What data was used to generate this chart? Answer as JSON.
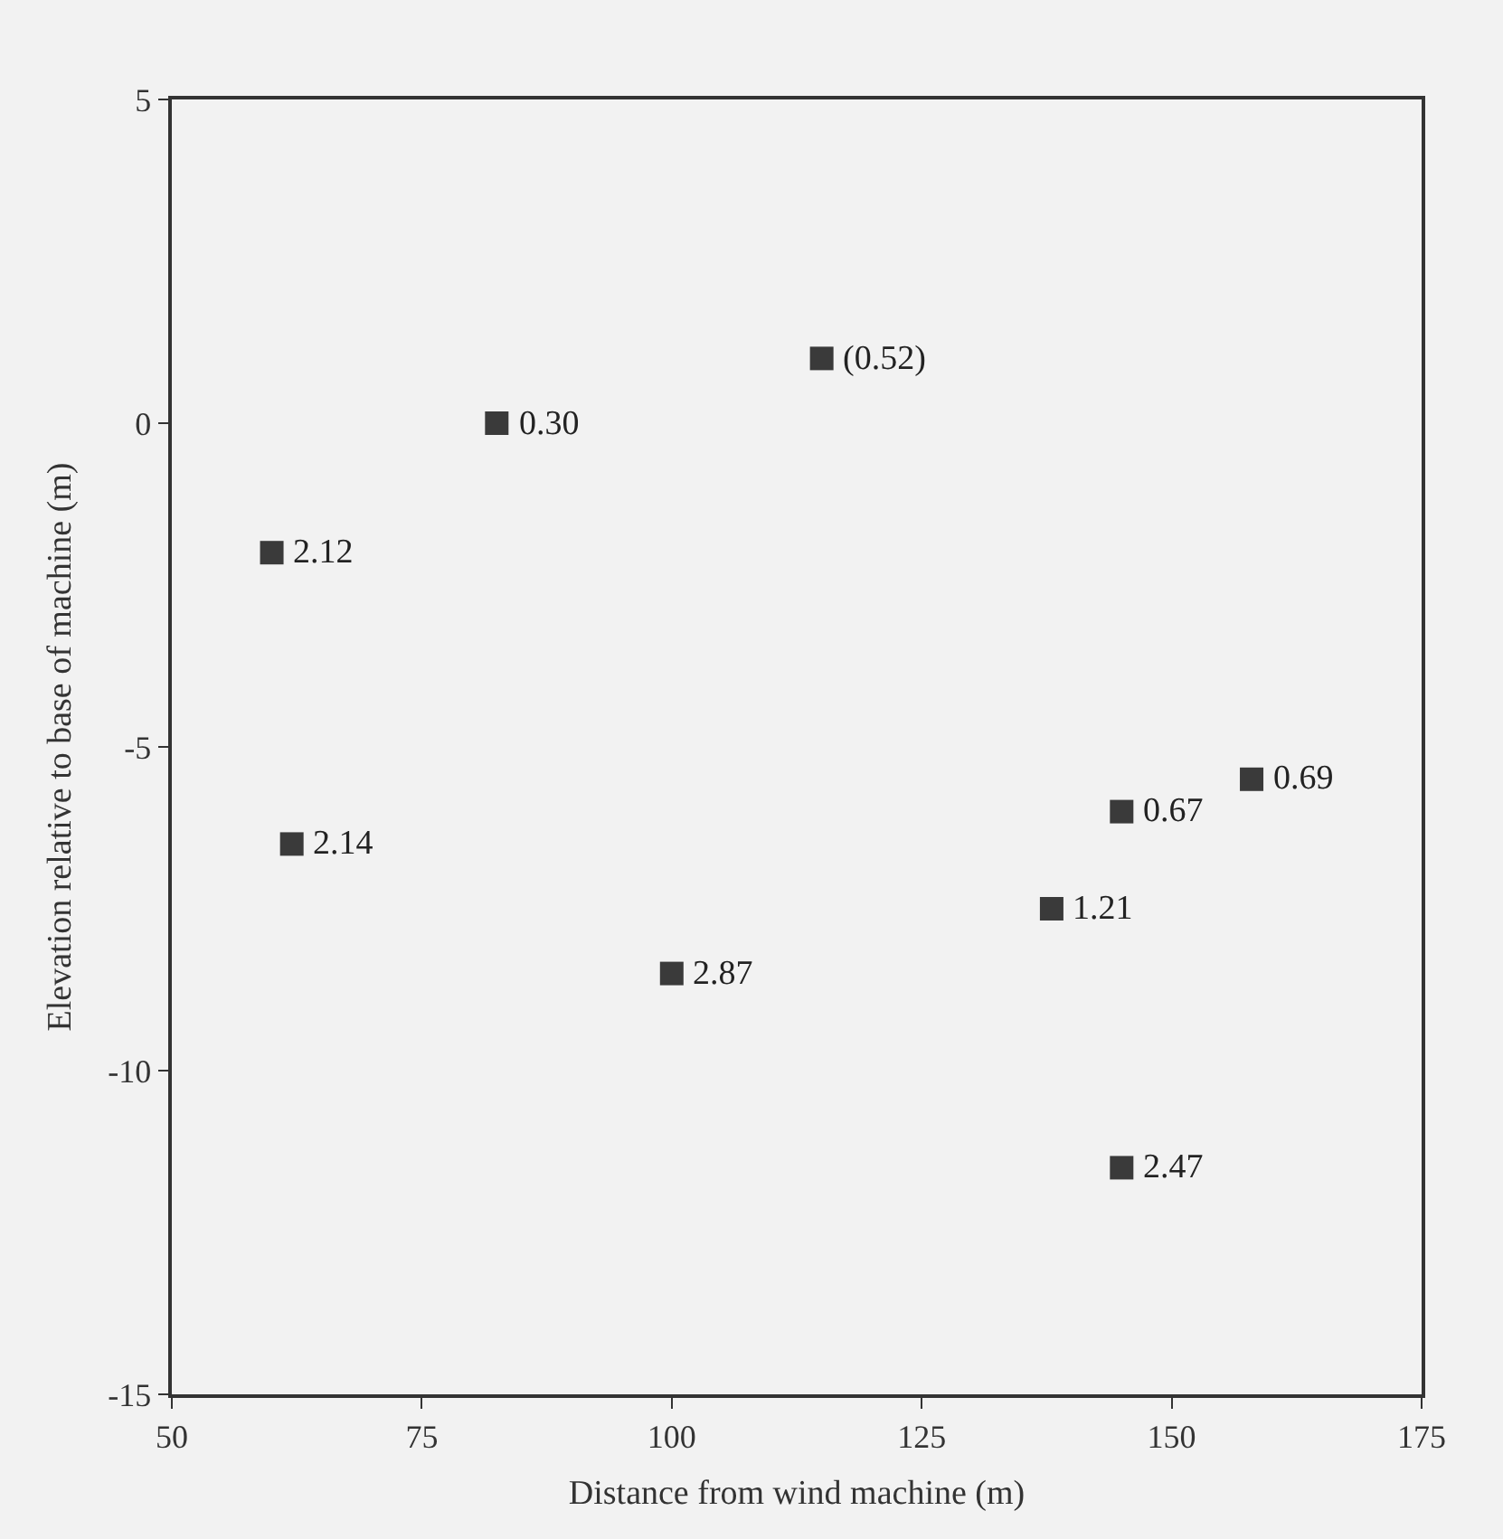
{
  "chart_data": {
    "type": "scatter",
    "xlabel": "Distance from wind machine (m)",
    "ylabel": "Elevation relative to base of machine (m)",
    "xlim": [
      50,
      175
    ],
    "xticks": [
      50,
      75,
      100,
      125,
      150,
      175
    ],
    "ylim": [
      -15,
      5
    ],
    "yticks": [
      -15,
      -10,
      -5,
      0,
      5
    ],
    "grid": false,
    "marker": "square",
    "series": [
      {
        "color": "#3a3a3a",
        "x": [
          115,
          82.5,
          60,
          62,
          100,
          138,
          145,
          158,
          145
        ],
        "values": [
          1,
          0,
          -2,
          -6.5,
          -8.5,
          -7.5,
          -6,
          -5.5,
          -11.5
        ]
      }
    ],
    "annotations": [
      {
        "text": "(0.52)",
        "x": 115,
        "y": 1
      },
      {
        "text": "0.30",
        "x": 82.5,
        "y": 0
      },
      {
        "text": "2.12",
        "x": 60,
        "y": -2
      },
      {
        "text": "2.14",
        "x": 62,
        "y": -6.5
      },
      {
        "text": "2.87",
        "x": 100,
        "y": -8.5
      },
      {
        "text": "1.21",
        "x": 138,
        "y": -7.5
      },
      {
        "text": "0.67",
        "x": 145,
        "y": -6
      },
      {
        "text": "0.69",
        "x": 158,
        "y": -5.5
      },
      {
        "text": "2.47",
        "x": 145,
        "y": -11.5
      }
    ]
  }
}
